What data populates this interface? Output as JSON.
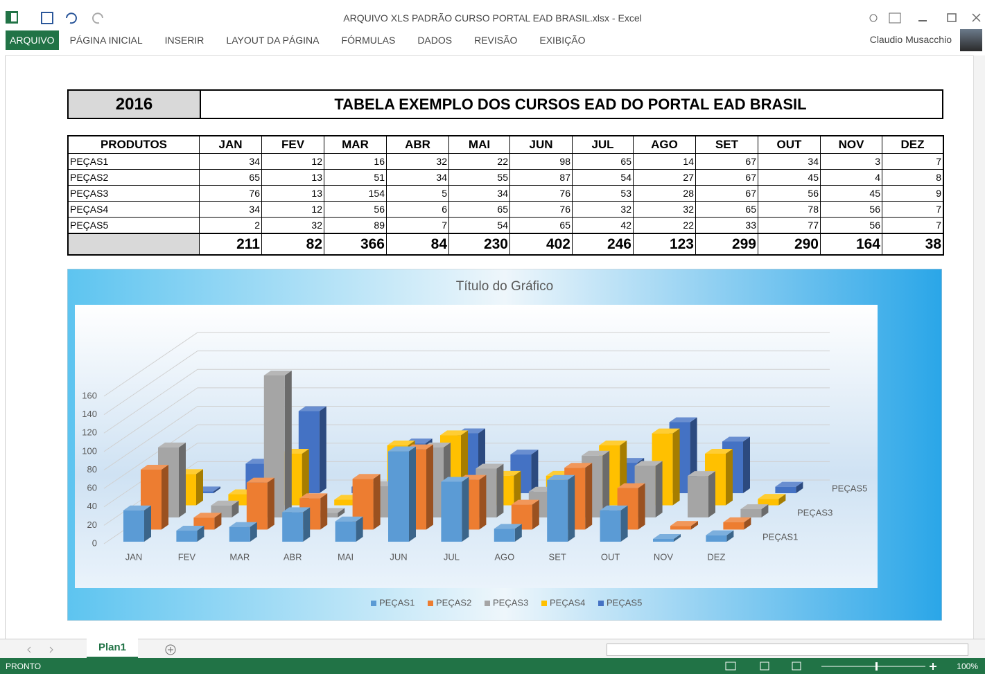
{
  "window": {
    "title": "ARQUIVO XLS PADRÃO CURSO PORTAL EAD BRASIL.xlsx - Excel",
    "user": "Claudio Musacchio"
  },
  "ribbon_tabs": [
    "ARQUIVO",
    "PÁGINA INICIAL",
    "INSERIR",
    "LAYOUT DA PÁGINA",
    "FÓRMULAS",
    "DADOS",
    "REVISÃO",
    "EXIBIÇÃO"
  ],
  "sheet": {
    "year": "2016",
    "title": "TABELA EXEMPLO DOS CURSOS EAD DO PORTAL EAD BRASIL"
  },
  "table": {
    "header": [
      "PRODUTOS",
      "JAN",
      "FEV",
      "MAR",
      "ABR",
      "MAI",
      "JUN",
      "JUL",
      "AGO",
      "SET",
      "OUT",
      "NOV",
      "DEZ"
    ],
    "rows": [
      [
        "PEÇAS1",
        34,
        12,
        16,
        32,
        22,
        98,
        65,
        14,
        67,
        34,
        3,
        7
      ],
      [
        "PEÇAS2",
        65,
        13,
        51,
        34,
        55,
        87,
        54,
        27,
        67,
        45,
        4,
        8
      ],
      [
        "PEÇAS3",
        76,
        13,
        154,
        5,
        34,
        76,
        53,
        28,
        67,
        56,
        45,
        9
      ],
      [
        "PEÇAS4",
        34,
        12,
        56,
        6,
        65,
        76,
        32,
        32,
        65,
        78,
        56,
        7
      ],
      [
        "PEÇAS5",
        2,
        32,
        89,
        7,
        54,
        65,
        42,
        22,
        33,
        77,
        56,
        7
      ]
    ],
    "totals": [
      211,
      82,
      366,
      84,
      230,
      402,
      246,
      123,
      299,
      290,
      164,
      38
    ]
  },
  "chart_data": {
    "type": "bar3d",
    "title": "Título do Gráfico",
    "categories": [
      "JAN",
      "FEV",
      "MAR",
      "ABR",
      "MAI",
      "JUN",
      "JUL",
      "AGO",
      "SET",
      "OUT",
      "NOV",
      "DEZ"
    ],
    "series": [
      {
        "name": "PEÇAS1",
        "color": "#5b9bd5",
        "values": [
          34,
          12,
          16,
          32,
          22,
          98,
          65,
          14,
          67,
          34,
          3,
          7
        ]
      },
      {
        "name": "PEÇAS2",
        "color": "#ed7d31",
        "values": [
          65,
          13,
          51,
          34,
          55,
          87,
          54,
          27,
          67,
          45,
          4,
          8
        ]
      },
      {
        "name": "PEÇAS3",
        "color": "#a5a5a5",
        "values": [
          76,
          13,
          154,
          5,
          34,
          76,
          53,
          28,
          67,
          56,
          45,
          9
        ]
      },
      {
        "name": "PEÇAS4",
        "color": "#ffc000",
        "values": [
          34,
          12,
          56,
          6,
          65,
          76,
          32,
          32,
          65,
          78,
          56,
          7
        ]
      },
      {
        "name": "PEÇAS5",
        "color": "#4472c4",
        "values": [
          2,
          32,
          89,
          7,
          54,
          65,
          42,
          22,
          33,
          77,
          56,
          7
        ]
      }
    ],
    "ylim": [
      0,
      160
    ],
    "yticks": [
      0,
      20,
      40,
      60,
      80,
      100,
      120,
      140,
      160
    ],
    "grid": true,
    "legend": "bottom"
  },
  "sheet_tabs": [
    "Plan1"
  ],
  "status": {
    "mode": "PRONTO",
    "zoom": "100%"
  }
}
